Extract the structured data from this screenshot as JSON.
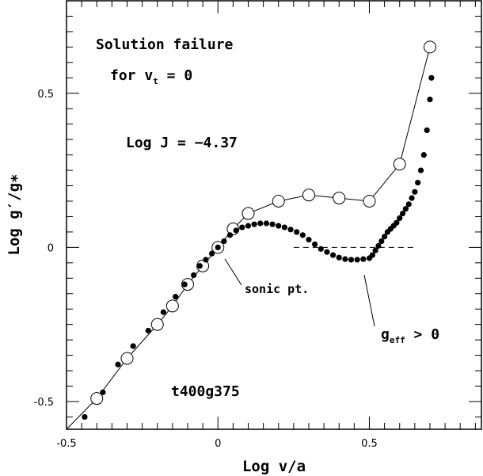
{
  "chart_data": {
    "type": "scatter",
    "title": "",
    "xlabel": "Log v/a",
    "ylabel": "Log g′/g∗",
    "xlim": [
      -0.5,
      0.87
    ],
    "ylim": [
      -0.59,
      0.8
    ],
    "x_ticks": [
      -0.5,
      0,
      0.5
    ],
    "x_tick_labels": [
      "-0.5",
      "0",
      "0.5"
    ],
    "y_ticks": [
      -0.5,
      0,
      0.5
    ],
    "y_tick_labels": [
      "-0.5",
      "0",
      "0.5"
    ],
    "grid": false,
    "legend": "none",
    "annotations": {
      "line1": "Solution failure",
      "line2_main": "for v",
      "line2_sub": "t",
      "line2_tail": " = 0",
      "logj": "Log J = −4.37",
      "sonic": "sonic pt.",
      "geff_main": "g",
      "geff_sub": "eff",
      "geff_tail": " > 0",
      "model": "t400g375"
    },
    "series": [
      {
        "style": "open-circles-with-line",
        "x": [
          -0.5,
          -0.4,
          -0.3,
          -0.2,
          -0.15,
          -0.1,
          -0.05,
          0.0,
          0.05,
          0.1,
          0.2,
          0.3,
          0.4,
          0.5,
          0.6,
          0.7
        ],
        "y": [
          -0.59,
          -0.49,
          -0.36,
          -0.25,
          -0.19,
          -0.12,
          -0.06,
          0.0,
          0.06,
          0.11,
          0.15,
          0.17,
          0.16,
          0.15,
          0.27,
          0.65
        ]
      },
      {
        "style": "filled-dots",
        "x": [
          -0.44,
          -0.38,
          -0.33,
          -0.28,
          -0.23,
          -0.18,
          -0.14,
          -0.11,
          -0.08,
          -0.06,
          -0.04,
          -0.02,
          0.0,
          0.02,
          0.04,
          0.06,
          0.08,
          0.1,
          0.12,
          0.14,
          0.16,
          0.18,
          0.2,
          0.22,
          0.24,
          0.26,
          0.28,
          0.3,
          0.32,
          0.34,
          0.36,
          0.38,
          0.4,
          0.42,
          0.44,
          0.46,
          0.48,
          0.5,
          0.51,
          0.52,
          0.53,
          0.54,
          0.55,
          0.56,
          0.57,
          0.58,
          0.59,
          0.6,
          0.61,
          0.62,
          0.63,
          0.64,
          0.65,
          0.66,
          0.67,
          0.68,
          0.69,
          0.7,
          0.705
        ],
        "y": [
          -0.55,
          -0.47,
          -0.38,
          -0.32,
          -0.27,
          -0.21,
          -0.16,
          -0.12,
          -0.09,
          -0.06,
          -0.04,
          -0.02,
          0.0,
          0.02,
          0.04,
          0.055,
          0.065,
          0.07,
          0.075,
          0.078,
          0.078,
          0.075,
          0.07,
          0.065,
          0.058,
          0.05,
          0.04,
          0.025,
          0.01,
          -0.005,
          -0.015,
          -0.025,
          -0.033,
          -0.038,
          -0.04,
          -0.04,
          -0.038,
          -0.035,
          -0.025,
          -0.01,
          0.005,
          0.02,
          0.035,
          0.05,
          0.06,
          0.07,
          0.08,
          0.095,
          0.11,
          0.125,
          0.14,
          0.16,
          0.18,
          0.21,
          0.25,
          0.3,
          0.38,
          0.48,
          0.55
        ]
      },
      {
        "style": "dashed-line",
        "x": [
          0.25,
          0.65
        ],
        "y": [
          0.0,
          0.0
        ]
      }
    ]
  }
}
